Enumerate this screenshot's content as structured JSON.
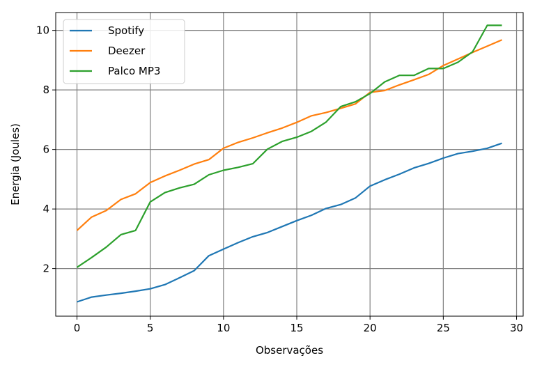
{
  "chart_data": {
    "type": "line",
    "title": "",
    "xlabel": "Observações",
    "ylabel": "Energia (Joules)",
    "xlim": [
      -1.45,
      30.45
    ],
    "ylim": [
      0.4,
      10.6
    ],
    "xticks": [
      0,
      5,
      10,
      15,
      20,
      25,
      30
    ],
    "yticks": [
      2,
      4,
      6,
      8,
      10
    ],
    "grid": true,
    "legend_position": "top-left",
    "x": [
      0,
      1,
      2,
      3,
      4,
      5,
      6,
      7,
      8,
      9,
      10,
      11,
      12,
      13,
      14,
      15,
      16,
      17,
      18,
      19,
      20,
      21,
      22,
      23,
      24,
      25,
      26,
      27,
      28,
      29
    ],
    "series": [
      {
        "name": "Spotify",
        "color": "#1f77b4",
        "values": [
          0.88,
          1.04,
          1.11,
          1.17,
          1.24,
          1.32,
          1.46,
          1.69,
          1.93,
          2.43,
          2.65,
          2.87,
          3.07,
          3.21,
          3.41,
          3.61,
          3.79,
          4.02,
          4.15,
          4.37,
          4.77,
          4.98,
          5.17,
          5.38,
          5.53,
          5.71,
          5.86,
          5.94,
          6.04,
          6.21
        ]
      },
      {
        "name": "Deezer",
        "color": "#ff7f0e",
        "values": [
          3.28,
          3.73,
          3.95,
          4.32,
          4.51,
          4.89,
          5.11,
          5.3,
          5.51,
          5.66,
          6.04,
          6.24,
          6.39,
          6.56,
          6.72,
          6.91,
          7.13,
          7.24,
          7.38,
          7.53,
          7.92,
          7.98,
          8.17,
          8.34,
          8.52,
          8.82,
          9.04,
          9.26,
          9.47,
          9.68
        ]
      },
      {
        "name": "Palco MP3",
        "color": "#2ca02c",
        "values": [
          2.04,
          2.37,
          2.72,
          3.14,
          3.28,
          4.24,
          4.55,
          4.71,
          4.83,
          5.15,
          5.3,
          5.4,
          5.52,
          6.01,
          6.27,
          6.41,
          6.61,
          6.92,
          7.44,
          7.6,
          7.88,
          8.27,
          8.49,
          8.49,
          8.72,
          8.72,
          8.93,
          9.28,
          10.17,
          10.17
        ]
      }
    ]
  }
}
